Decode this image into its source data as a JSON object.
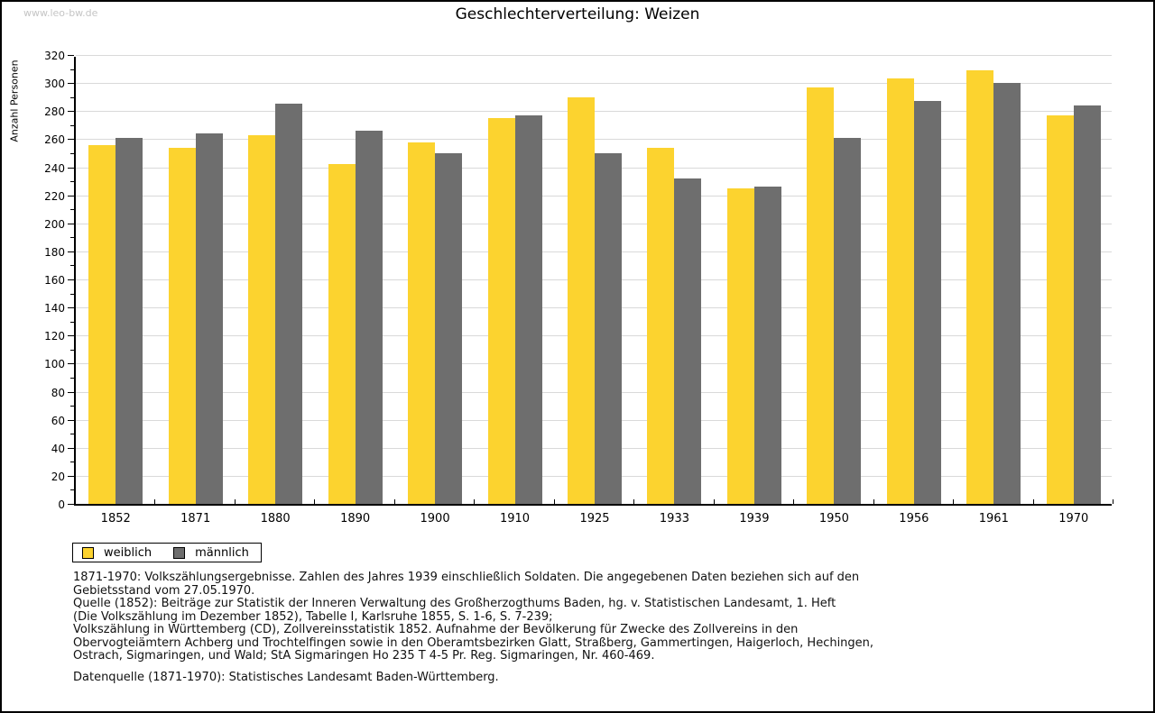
{
  "watermark": "www.leo-bw.de",
  "title": "Geschlechterverteilung: Weizen",
  "chart_data": {
    "type": "bar",
    "title": "Geschlechterverteilung: Weizen",
    "xlabel": "",
    "ylabel": "Anzahl Personen",
    "ylim": [
      0,
      320
    ],
    "ytick_step": 20,
    "minor_tick_step": 10,
    "grid": true,
    "legend_position": "bottom-left",
    "categories": [
      "1852",
      "1871",
      "1880",
      "1890",
      "1900",
      "1910",
      "1925",
      "1933",
      "1939",
      "1950",
      "1956",
      "1961",
      "1970"
    ],
    "series": [
      {
        "name": "weiblich",
        "color": "#FCD32F",
        "values": [
          256,
          254,
          263,
          242,
          258,
          275,
          290,
          254,
          225,
          297,
          303,
          309,
          277
        ]
      },
      {
        "name": "männlich",
        "color": "#6E6E6E",
        "values": [
          261,
          264,
          285,
          266,
          250,
          277,
          250,
          232,
          226,
          261,
          287,
          300,
          284
        ]
      }
    ]
  },
  "colors": {
    "weiblich": "#FCD32F",
    "männlich": "#6E6E6E",
    "gridline": "#d9d9d9",
    "watermark": "#c5c5c5",
    "axis": "#000000"
  },
  "footer": {
    "lines": [
      "1871-1970: Volkszählungsergebnisse. Zahlen des Jahres 1939 einschließlich Soldaten. Die angegebenen Daten beziehen sich auf den",
      "Gebietsstand vom 27.05.1970.",
      "Quelle (1852): Beiträge zur Statistik der Inneren Verwaltung des Großherzogthums Baden, hg. v. Statistischen Landesamt, 1. Heft",
      "(Die Volkszählung im Dezember 1852), Tabelle I, Karlsruhe 1855, S. 1-6, S. 7-239;",
      "Volkszählung in Württemberg (CD), Zollvereinsstatistik 1852. Aufnahme der Bevölkerung für Zwecke des Zollvereins in den",
      "Obervogteiämtern Achberg und Trochtelfingen sowie in den Oberamtsbezirken Glatt, Straßberg, Gammertingen, Haigerloch, Hechingen,",
      "Ostrach, Sigmaringen, und Wald; StA Sigmaringen Ho 235 T 4-5 Pr. Reg. Sigmaringen, Nr. 460-469."
    ],
    "datenquelle": "Datenquelle (1871-1970): Statistisches Landesamt Baden-Württemberg."
  }
}
